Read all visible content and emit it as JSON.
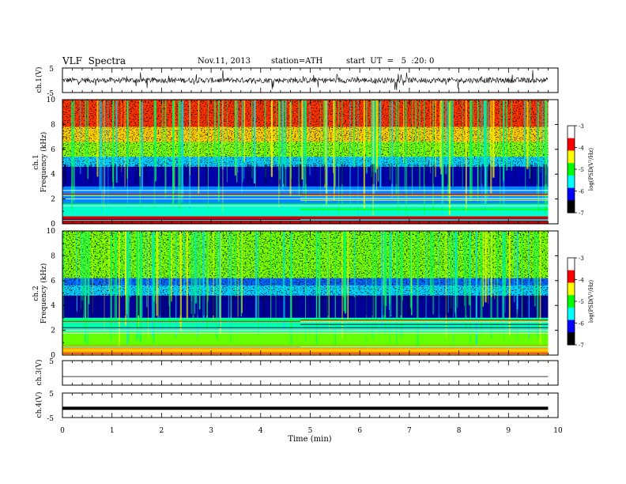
{
  "header": {
    "title": "VLF  Spectra",
    "date": "Nov.11, 2013",
    "station": "station=ATH",
    "start": "start  UT  =   5  :20: 0"
  },
  "chart_data": [
    {
      "type": "line",
      "ylabel": "ch.1(V)",
      "ylim": [
        -5,
        5
      ],
      "yticks": [
        "5",
        "-5"
      ],
      "description_level": "noisy waveform centered near 0 V"
    },
    {
      "type": "heatmap",
      "ylabel_top": "ch.1",
      "ylabel": "Frequency  (kHz)",
      "ylim": [
        0,
        10
      ],
      "yticks": [
        "0",
        "2",
        "4",
        "6",
        "8",
        "10"
      ],
      "colorbar": {
        "label": "log(PSD(V²/Hz)",
        "range": [
          -7,
          -3
        ],
        "ticks": [
          "-3",
          "-4",
          "-5",
          "-6",
          "-7"
        ],
        "colors": [
          "#ffffff",
          "#ff0000",
          "#ffff00",
          "#00ff00",
          "#00ffff",
          "#0000ff",
          "#000000"
        ]
      }
    },
    {
      "type": "heatmap",
      "ylabel_top": "ch.2",
      "ylabel": "Frequency  (kHz)",
      "ylim": [
        0,
        10
      ],
      "yticks": [
        "0",
        "2",
        "4",
        "6",
        "8",
        "10"
      ],
      "colorbar": {
        "label": "log(PSD(V²/Hz)",
        "range": [
          -7,
          -3
        ],
        "ticks": [
          "-3",
          "-4",
          "-5",
          "-6",
          "-7"
        ],
        "colors": [
          "#ffffff",
          "#ff0000",
          "#ffff00",
          "#00ff00",
          "#00ffff",
          "#0000ff",
          "#000000"
        ]
      }
    },
    {
      "type": "line",
      "ylabel": "ch.3(V)",
      "ylim": [
        -5,
        5
      ],
      "yticks": [
        "5"
      ],
      "level": -1.5
    },
    {
      "type": "line",
      "ylabel": "ch.4(V)",
      "ylim": [
        -5,
        5
      ],
      "yticks": [
        "5",
        "-5"
      ],
      "level": -1.2
    }
  ],
  "xaxis": {
    "label": "Time  (min)",
    "xlim": [
      0,
      10
    ],
    "ticks": [
      "0",
      "1",
      "2",
      "3",
      "4",
      "5",
      "6",
      "7",
      "8",
      "9",
      "10"
    ],
    "data_end": 9.8
  }
}
